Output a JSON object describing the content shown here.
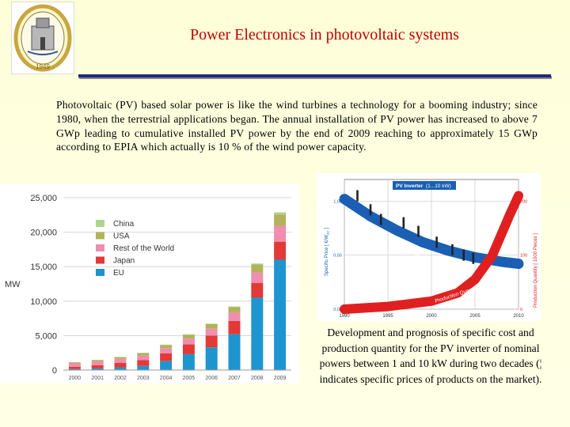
{
  "header": {
    "title": "Power Electronics in photovoltaic systems",
    "logo": {
      "year": "1949",
      "icon": "university-seal-icon"
    }
  },
  "body": {
    "paragraph": "Photovoltaic (PV) based solar power is like the wind turbines a technology for a booming industry; since 1980, when the terrestrial applications began. The annual installation of PV power has increased to above 7 GWp leading to cumulative installed PV power by the end of 2009 reaching to approximately 15 GWp according to EPIA which actually is 10 % of the wind power capacity."
  },
  "chart_data": [
    {
      "type": "bar",
      "stacked": true,
      "ylabel": "MW",
      "xlabel": "",
      "title": "",
      "ylim": [
        0,
        25000
      ],
      "yticks": [
        "0",
        "5,000",
        "10,000",
        "15,000",
        "20,000",
        "25,000"
      ],
      "categories": [
        "2000",
        "2001",
        "2002",
        "2003",
        "2004",
        "2005",
        "2006",
        "2007",
        "2008",
        "2009"
      ],
      "legend_position": "top-left",
      "grid": true,
      "series": [
        {
          "name": "EU",
          "color": "#1f95cf",
          "values": [
            150,
            250,
            400,
            600,
            1300,
            2300,
            3300,
            5200,
            10500,
            16000
          ]
        },
        {
          "name": "Japan",
          "color": "#e23a36",
          "values": [
            330,
            450,
            630,
            860,
            1130,
            1420,
            1700,
            1920,
            2150,
            2620
          ]
        },
        {
          "name": "Rest of the World",
          "color": "#f08db0",
          "values": [
            500,
            550,
            600,
            650,
            750,
            850,
            1000,
            1200,
            1500,
            2300
          ]
        },
        {
          "name": "USA",
          "color": "#b2b25a",
          "values": [
            150,
            200,
            250,
            350,
            450,
            550,
            650,
            800,
            1150,
            1650
          ]
        },
        {
          "name": "China",
          "color": "#a9d68d",
          "values": [
            20,
            25,
            30,
            50,
            60,
            70,
            80,
            100,
            150,
            300
          ]
        }
      ]
    },
    {
      "type": "line",
      "title": "PV Inverter",
      "title_range": "(1...10 kW)",
      "ylabel_left": "Specific Price [ €/W",
      "ylabel_left_sub": "AC",
      "ylabel_left_tail": " ]",
      "ylabel_right": "Production Quantity [ 1000 Pieces ]",
      "x_ticks": [
        "1990",
        "1995",
        "2000",
        "2005",
        "2010"
      ],
      "y_left_ticks": [
        "0,00",
        "0,50",
        "1,00"
      ],
      "y_right_ticks": [
        "0",
        "100",
        "200"
      ],
      "series": [
        {
          "name": "Specific Price",
          "color": "#1a5fb4",
          "x": [
            1990,
            1993,
            1996,
            1999,
            2002,
            2005,
            2008,
            2010
          ],
          "y": [
            1.02,
            0.86,
            0.73,
            0.62,
            0.54,
            0.48,
            0.44,
            0.42
          ]
        },
        {
          "name": "Production Quantity",
          "color": "#e02020",
          "x": [
            1990,
            1995,
            2000,
            2003,
            2005,
            2007,
            2009,
            2010
          ],
          "y": [
            0,
            5,
            15,
            30,
            55,
            100,
            175,
            210
          ]
        }
      ],
      "market_prices": {
        "x": [
          1991.5,
          1993,
          1994.2,
          1996.8,
          1998.5,
          2000.6,
          2002.4,
          2003.7,
          2004.8
        ],
        "y": [
          1.05,
          0.92,
          0.83,
          0.8,
          0.72,
          0.62,
          0.55,
          0.5,
          0.47
        ]
      }
    }
  ],
  "caption": "Development and prognosis of specific cost and production quantity for the PV inverter of nominal powers between 1 and 10 kW during two decades (¦ indicates specific prices of products on the market)."
}
